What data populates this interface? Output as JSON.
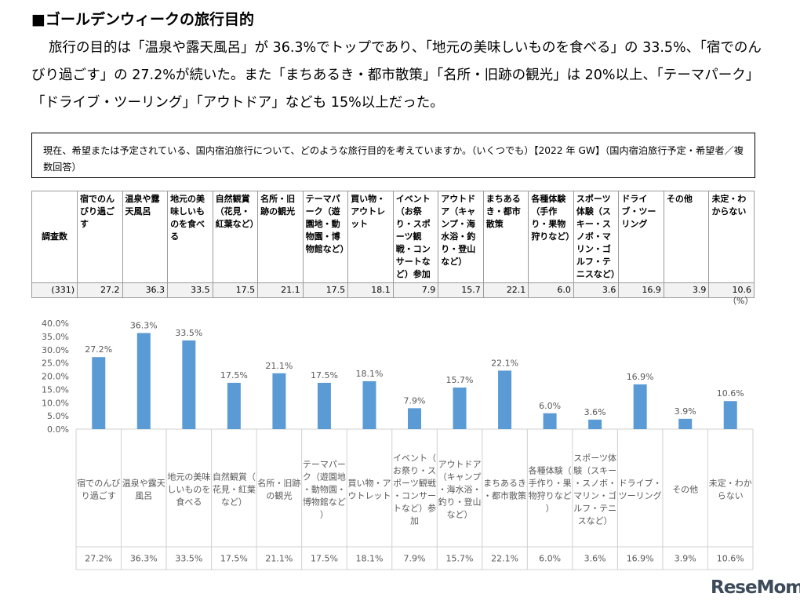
{
  "heading": "■ゴールデンウィークの旅行目的",
  "paragraph": "旅行の目的は「温泉や露天風呂」が 36.3%でトップであり、「地元の美味しいものを食べる」の 33.5%、「宿でのんびり過ごす」の 27.2%が続いた。また「まちあるき・都市散策」「名所・旧跡の観光」は 20%以上、「テーマパーク」「ドライブ・ツーリング」「アウトドア」なども 15%以上だった。",
  "question": "現在、希望または予定されている、国内宿泊旅行について、どのような旅行目的を考えていますか。（いくつでも）【2022 年 GW】（国内宿泊旅行予定・希望者／複数回答）",
  "table": {
    "row_label": "調査数",
    "sample_size": "(331)",
    "headers": [
      "宿でのんびり過ごす",
      "温泉や露天風呂",
      "地元の美味しいものを食べる",
      "自然観賞（花見・紅葉など）",
      "名所・旧跡の観光",
      "テーマパーク（遊園地・動物園・博物館など）",
      "買い物・アウトレット",
      "イベント（お祭り・スポーツ観戦・コンサートなど）参加",
      "アウトドア（キャンプ・海水浴・釣り・登山など）",
      "まちあるき・都市散策",
      "各種体験（手作り・果物狩りなど）",
      "スポーツ体験（スキー・スノボ・マリン・ゴルフ・テニスなど）",
      "ドライブ・ツーリング",
      "その他",
      "未定・わからない"
    ],
    "values": [
      "27.2",
      "36.3",
      "33.5",
      "17.5",
      "21.1",
      "17.5",
      "18.1",
      "7.9",
      "15.7",
      "22.1",
      "6.0",
      "3.6",
      "16.9",
      "3.9",
      "10.6"
    ]
  },
  "unit_label": "（%）",
  "chart_data": {
    "type": "bar",
    "categories": [
      "宿でのんびり過ごす",
      "温泉や露天風呂",
      "地元の美味しいものを食べる",
      "自然観賞（花見・紅葉など）",
      "名所・旧跡の観光",
      "テーマパーク（遊園地・動物園・博物館など）",
      "買い物・アウトレット",
      "イベント（お祭り・スポーツ観戦・コンサートなど）参加",
      "アウトドア（キャンプ・海水浴・釣り・登山など）",
      "まちあるき・都市散策",
      "各種体験（手作り・果物狩りなど）",
      "スポーツ体験（スキー・スノボ・マリン・ゴルフ・テニスなど）",
      "ドライブ・ツーリング",
      "その他",
      "未定・わからない"
    ],
    "values": [
      27.2,
      36.3,
      33.5,
      17.5,
      21.1,
      17.5,
      18.1,
      7.9,
      15.7,
      22.1,
      6.0,
      3.6,
      16.9,
      3.9,
      10.6
    ],
    "value_labels": [
      "27.2%",
      "36.3%",
      "33.5%",
      "17.5%",
      "21.1%",
      "17.5%",
      "18.1%",
      "7.9%",
      "15.7%",
      "22.1%",
      "6.0%",
      "3.6%",
      "16.9%",
      "3.9%",
      "10.6%"
    ],
    "yticks": [
      "0.0%",
      "5.0%",
      "10.0%",
      "15.0%",
      "20.0%",
      "25.0%",
      "30.0%",
      "35.0%",
      "40.0%"
    ],
    "ylim": [
      0,
      40
    ],
    "title": "",
    "xlabel": "",
    "ylabel": "",
    "bar_color": "#5b9bd5",
    "grid": false
  },
  "logo": {
    "text": "ReseMom"
  }
}
